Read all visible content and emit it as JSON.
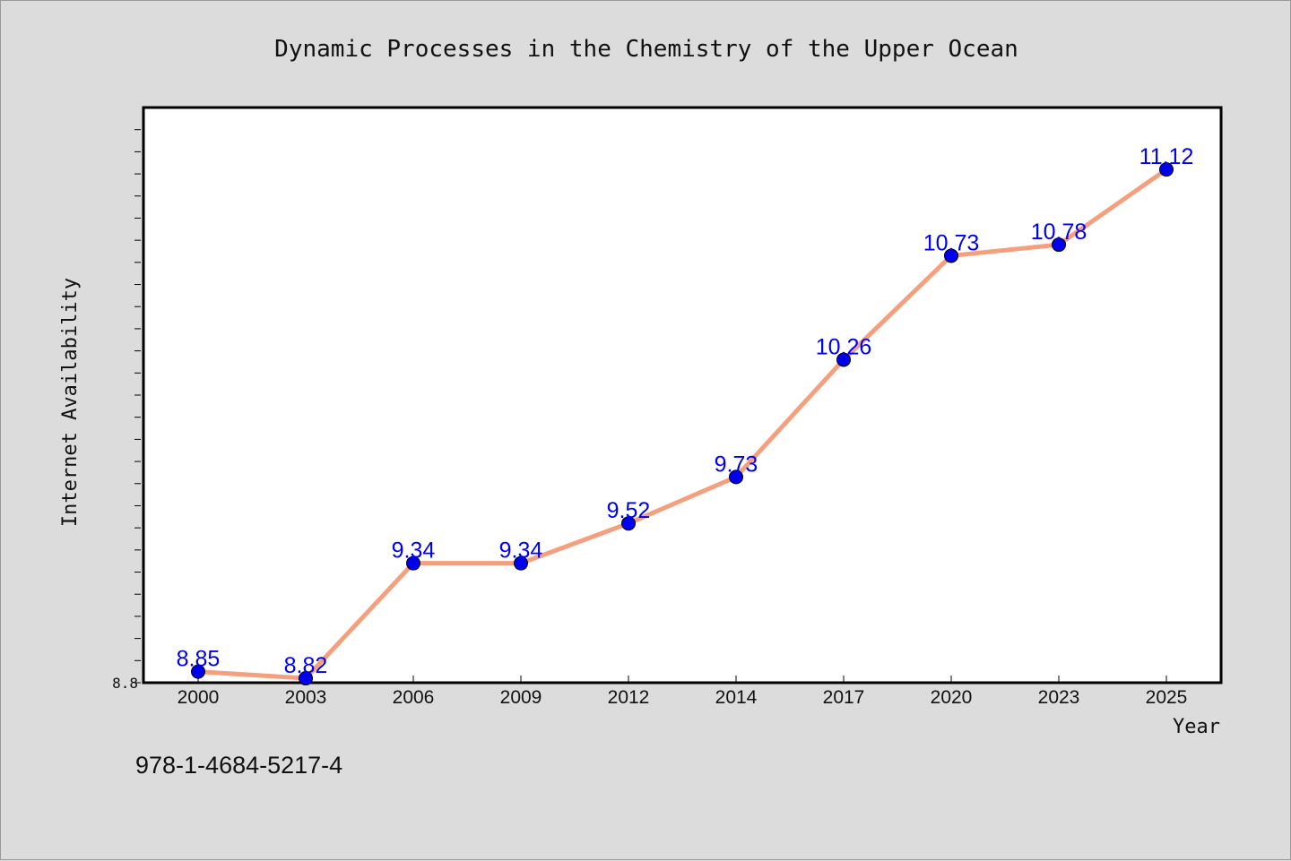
{
  "chart_data": {
    "type": "line",
    "title": "Dynamic Processes in the Chemistry of the Upper Ocean",
    "xlabel": "Year",
    "ylabel": "Internet Availability",
    "categories": [
      "2000",
      "2003",
      "2006",
      "2009",
      "2012",
      "2014",
      "2017",
      "2020",
      "2023",
      "2025"
    ],
    "series": [
      {
        "values": [
          8.85,
          8.82,
          9.34,
          9.34,
          9.52,
          9.73,
          10.26,
          10.73,
          10.78,
          11.12
        ]
      }
    ],
    "data_labels": [
      "8.85",
      "8.82",
      "9.34",
      "9.34",
      "9.52",
      "9.73",
      "10.26",
      "10.73",
      "10.78",
      "11.12"
    ],
    "ylim": [
      8.8,
      11.4
    ],
    "y_tick_labels": [
      "8.8"
    ],
    "grid": false,
    "legend": "none",
    "line_color": "#f4a07e",
    "marker_color": "#0000ee",
    "label_color": "#0000ee"
  },
  "footer": {
    "isbn": "978-1-4684-5217-4"
  }
}
